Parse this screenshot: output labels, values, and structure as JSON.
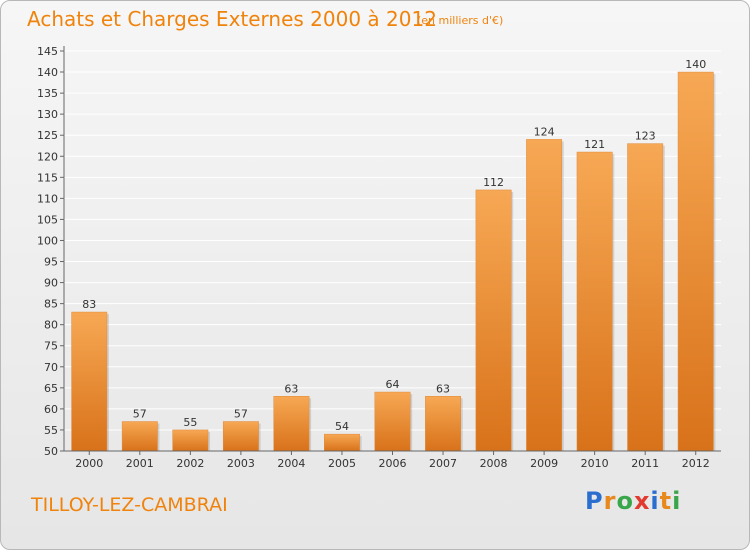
{
  "header": {
    "title": "Achats et Charges Externes 2000 à 2012",
    "unit_note": "(en milliers d'€)"
  },
  "footer": {
    "place": "TILLOY-LEZ-CAMBRAI",
    "logo_letters": [
      "P",
      "r",
      "o",
      "x",
      "i",
      "t",
      "i"
    ],
    "logo_colors": [
      "#2a6fcf",
      "#e8891e",
      "#3aa64a",
      "#e23a2e",
      "#2a6fcf",
      "#e8891e",
      "#3aa64a"
    ]
  },
  "colors": {
    "accent": "#f0830c",
    "bar_top": "#f7a854",
    "bar_bottom": "#d8721a",
    "grid": "#ffffff"
  },
  "chart_data": {
    "type": "bar",
    "categories": [
      "2000",
      "2001",
      "2002",
      "2003",
      "2004",
      "2005",
      "2006",
      "2007",
      "2008",
      "2009",
      "2010",
      "2011",
      "2012"
    ],
    "values": [
      83,
      57,
      55,
      57,
      63,
      54,
      64,
      63,
      112,
      124,
      121,
      123,
      140
    ],
    "title": "Achats et Charges Externes 2000 à 2012",
    "subtitle": "(en milliers d'€)",
    "ylim": [
      50,
      145
    ],
    "ytick_step": 5,
    "grid": true
  }
}
